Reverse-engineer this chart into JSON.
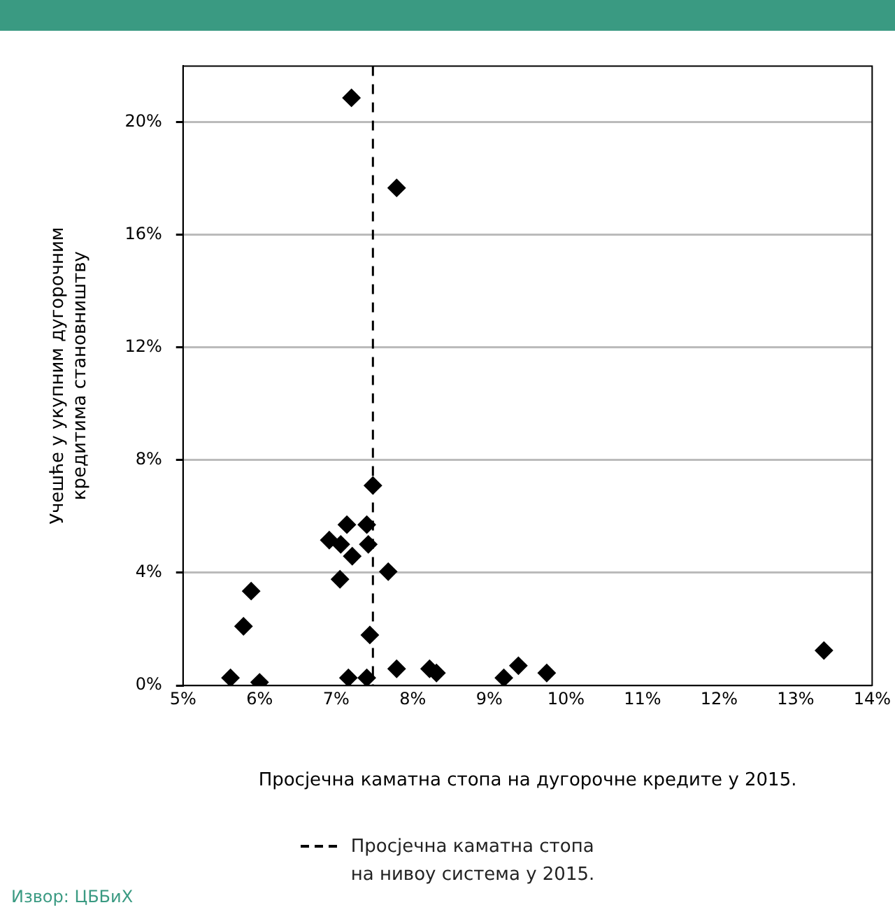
{
  "chart_data": {
    "type": "scatter",
    "xlabel": "Просјечна каматна стопа на дугорочне кредите у 2015.",
    "ylabel": "Учешће у укупним дугорочним\nкредитима становништву",
    "x": [
      5.62,
      6.0,
      5.79,
      5.89,
      6.91,
      7.06,
      7.14,
      7.21,
      7.05,
      7.4,
      7.42,
      7.48,
      7.68,
      7.44,
      7.16,
      7.4,
      7.79,
      8.22,
      8.31,
      9.19,
      9.38,
      9.75,
      13.37,
      7.2,
      7.79
    ],
    "series": [
      {
        "color": "#000000",
        "values": [
          0.27,
          0.11,
          2.1,
          3.35,
          5.16,
          5.01,
          5.71,
          4.59,
          3.77,
          5.71,
          5.01,
          7.1,
          4.04,
          1.79,
          0.27,
          0.27,
          0.59,
          0.59,
          0.44,
          0.27,
          0.7,
          0.44,
          1.24,
          20.87,
          17.67
        ]
      }
    ],
    "marker": "diamond",
    "xlim": [
      5,
      14
    ],
    "xticks": [
      {
        "value": 5,
        "label": "5%"
      },
      {
        "value": 6,
        "label": "6%"
      },
      {
        "value": 7,
        "label": "7%"
      },
      {
        "value": 8,
        "label": "8%"
      },
      {
        "value": 9,
        "label": "9%"
      },
      {
        "value": 10,
        "label": "10%"
      },
      {
        "value": 11,
        "label": "11%"
      },
      {
        "value": 12,
        "label": "12%"
      },
      {
        "value": 13,
        "label": "13%"
      },
      {
        "value": 14,
        "label": "14%"
      }
    ],
    "ylim": [
      0,
      22
    ],
    "yticks": [
      {
        "value": 0,
        "label": "0%"
      },
      {
        "value": 4,
        "label": "4%"
      },
      {
        "value": 8,
        "label": "8%"
      },
      {
        "value": 12,
        "label": "12%"
      },
      {
        "value": 16,
        "label": "16%"
      },
      {
        "value": 20,
        "label": "20%"
      }
    ],
    "grid": "y",
    "legend": "bottom",
    "ref_lines": [
      {
        "axis": "x",
        "value": 7.48,
        "label": "Просјечна каматна стопа\nна нивоу система у 2015.",
        "color": "#000000",
        "line_style": "dashed"
      }
    ],
    "annotations": [
      "Извор: ЦББиХ"
    ]
  }
}
